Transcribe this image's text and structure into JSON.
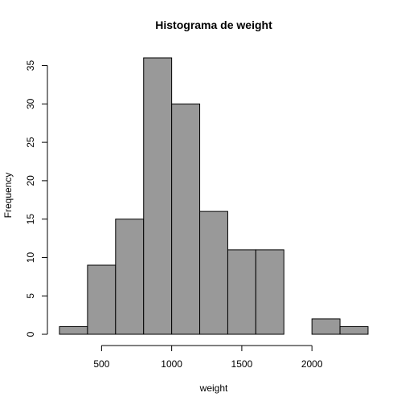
{
  "chart_data": {
    "type": "bar",
    "title": "Histograma de weight",
    "xlabel": "weight",
    "ylabel": "Frequency",
    "bins": [
      {
        "start": 200,
        "end": 400,
        "count": 1
      },
      {
        "start": 400,
        "end": 600,
        "count": 9
      },
      {
        "start": 600,
        "end": 800,
        "count": 15
      },
      {
        "start": 800,
        "end": 1000,
        "count": 36
      },
      {
        "start": 1000,
        "end": 1200,
        "count": 30
      },
      {
        "start": 1200,
        "end": 1400,
        "count": 16
      },
      {
        "start": 1400,
        "end": 1600,
        "count": 11
      },
      {
        "start": 1600,
        "end": 1800,
        "count": 11
      },
      {
        "start": 1800,
        "end": 2000,
        "count": 0
      },
      {
        "start": 2000,
        "end": 2200,
        "count": 2
      },
      {
        "start": 2200,
        "end": 2400,
        "count": 1
      }
    ],
    "xlim": [
      200,
      2400
    ],
    "ylim": [
      0,
      36
    ],
    "xticks": [
      500,
      1000,
      1500,
      2000
    ],
    "yticks": [
      0,
      5,
      10,
      15,
      20,
      25,
      30,
      35
    ],
    "grid": false,
    "bar_color": "#999999",
    "edge_color": "#000000"
  }
}
